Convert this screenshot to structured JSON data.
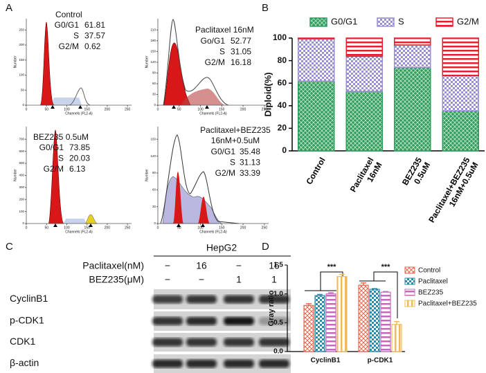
{
  "panel_labels": [
    "A",
    "B",
    "C",
    "D"
  ],
  "flow": {
    "plots": [
      {
        "title": [
          "Control"
        ],
        "rows": [
          {
            "label": "G0/G1",
            "value": 61.81
          },
          {
            "label": "S",
            "value": 37.57
          },
          {
            "label": "G2/M",
            "value": 0.62
          }
        ],
        "xticks": [
          0,
          50,
          100,
          150,
          200,
          250
        ],
        "yticks": [
          0,
          50,
          100,
          150,
          200,
          250
        ],
        "xlabel": "Channels (FL2-A)",
        "ylabel": "Number"
      },
      {
        "title": [
          "Paclitaxel 16nM"
        ],
        "rows": [
          {
            "label": "Go/G1",
            "value": 52.77
          },
          {
            "label": "S",
            "value": 31.05
          },
          {
            "label": "G2/M",
            "value": 16.18
          }
        ],
        "xticks": [
          0,
          50,
          100,
          150,
          200,
          250
        ],
        "yticks": [
          0,
          30,
          60,
          90,
          120,
          150,
          180,
          210
        ],
        "xlabel": "Channels (FL2-A)",
        "ylabel": "Number"
      },
      {
        "title": [
          "BEZ235  0.5uM"
        ],
        "rows": [
          {
            "label": "G0/G1",
            "value": 73.85
          },
          {
            "label": "S",
            "value": 20.03
          },
          {
            "label": "G2/M",
            "value": 6.13
          }
        ],
        "xticks": [
          0,
          50,
          100,
          150,
          200,
          250
        ],
        "yticks": [
          0,
          100,
          200,
          300,
          400,
          500,
          600,
          700
        ],
        "xlabel": "Channels (FL2-A)",
        "ylabel": "Number"
      },
      {
        "title": [
          "Paclitaxel+BEZ235",
          "16nM+0.5uM"
        ],
        "rows": [
          {
            "label": "G0/G1",
            "value": 35.48
          },
          {
            "label": "S",
            "value": 31.13
          },
          {
            "label": "G2/M",
            "value": 33.39
          }
        ],
        "xticks": [
          0,
          50,
          100,
          150,
          200,
          250
        ],
        "yticks": [
          0,
          30,
          60,
          90,
          120,
          150
        ],
        "xlabel": "Channels (FL2-A)",
        "ylabel": "Number"
      }
    ]
  },
  "chart_data": [
    {
      "type": "stacked-bar",
      "categories": [
        "Control",
        "Paclitaxel\n16nM",
        "BEZ235\n0.5uM",
        "Paclitaxel+BEZ235\n16nM+0.5uM"
      ],
      "series": [
        {
          "name": "G0/G1",
          "color": "#2e9e5a",
          "values": [
            61.81,
            52.77,
            73.85,
            35.48
          ]
        },
        {
          "name": "S",
          "color": "#9b8fd2",
          "values": [
            37.57,
            31.05,
            20.03,
            31.13
          ]
        },
        {
          "name": "G2/M",
          "color": "#e3202b",
          "values": [
            0.62,
            16.18,
            6.13,
            33.39
          ]
        }
      ],
      "ylabel": "Diploid(%)",
      "ylim": [
        0,
        100
      ],
      "yticks": [
        0,
        20,
        40,
        60,
        80,
        100
      ]
    },
    {
      "type": "grouped-bar",
      "categories": [
        "CyclinB1",
        "p-CDK1"
      ],
      "series": [
        {
          "name": "Control",
          "color": "#e8674f",
          "values": [
            0.8,
            1.15
          ],
          "errors": [
            0.03,
            0.04
          ]
        },
        {
          "name": "Paclitaxel",
          "color": "#2a8aa8",
          "values": [
            0.97,
            1.08
          ],
          "errors": [
            0.02,
            0.01
          ]
        },
        {
          "name": "BEZ235",
          "color": "#c569bd",
          "values": [
            1.0,
            1.03
          ],
          "errors": [
            0.02,
            0.01
          ]
        },
        {
          "name": "Paclitaxel+BEZ235",
          "color": "#f0b95a",
          "values": [
            1.3,
            0.47
          ],
          "errors": [
            0.04,
            0.05
          ]
        }
      ],
      "ylabel": "Gray ratio",
      "ylim": [
        0,
        1.5
      ],
      "yticks": [
        {
          "value": 0,
          "label": "0.0"
        },
        0.5,
        {
          "value": 1,
          "label": "1.0"
        },
        1.5
      ],
      "annotations": [
        "***",
        "***"
      ]
    }
  ],
  "blot": {
    "title": "HepG2",
    "treatments": [
      {
        "label": "Paclitaxel(nM)",
        "lanes": [
          "−",
          16,
          "−",
          16
        ]
      },
      {
        "label": "BEZ235(μM)",
        "lanes": [
          "−",
          "−",
          1,
          1
        ]
      }
    ],
    "bands": [
      "CyclinB1",
      "p-CDK1",
      "CDK1",
      "β-actin"
    ]
  }
}
